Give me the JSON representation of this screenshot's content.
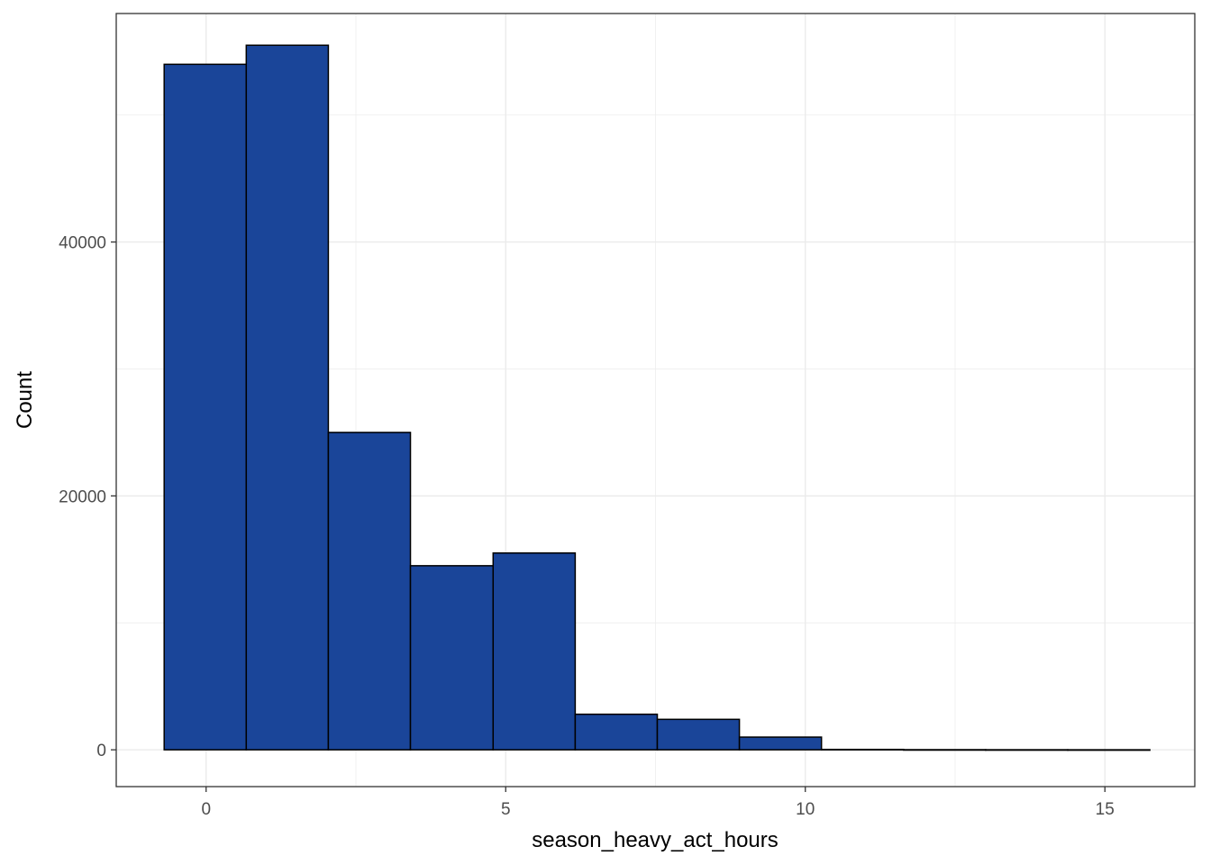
{
  "chart_data": {
    "type": "bar",
    "subtype": "histogram",
    "bins": [
      {
        "x0": -0.7,
        "x1": 0.67,
        "count": 54000
      },
      {
        "x0": 0.67,
        "x1": 2.04,
        "count": 55500
      },
      {
        "x0": 2.04,
        "x1": 3.41,
        "count": 25000
      },
      {
        "x0": 3.41,
        "x1": 4.79,
        "count": 14500
      },
      {
        "x0": 4.79,
        "x1": 6.16,
        "count": 15500
      },
      {
        "x0": 6.16,
        "x1": 7.53,
        "count": 2800
      },
      {
        "x0": 7.53,
        "x1": 8.9,
        "count": 2400
      },
      {
        "x0": 8.9,
        "x1": 10.27,
        "count": 1000
      },
      {
        "x0": 10.27,
        "x1": 11.64,
        "count": 30
      },
      {
        "x0": 11.64,
        "x1": 13.01,
        "count": 10
      },
      {
        "x0": 13.01,
        "x1": 14.38,
        "count": 5
      },
      {
        "x0": 14.38,
        "x1": 15.75,
        "count": 2
      }
    ],
    "xlabel": "season_heavy_act_hours",
    "ylabel": "Count",
    "xlim": [
      -1.5,
      16.5
    ],
    "ylim": [
      -2900,
      58000
    ],
    "xticks": [
      0,
      5,
      10,
      15
    ],
    "xtick_labels": [
      "0",
      "5",
      "10",
      "15"
    ],
    "yticks": [
      0,
      20000,
      40000
    ],
    "ytick_labels": [
      "0",
      "20000",
      "40000"
    ],
    "grid": true,
    "fill_color": "#1A4599",
    "edge_color": "#000000"
  }
}
